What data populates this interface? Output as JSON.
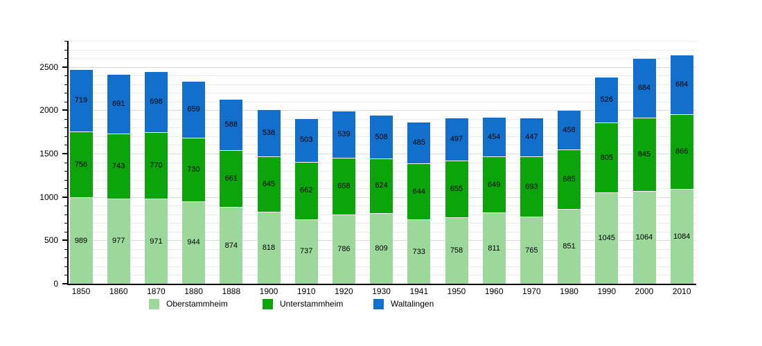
{
  "chart_data": {
    "type": "bar",
    "stacked": true,
    "title": "",
    "xlabel": "",
    "ylabel": "",
    "categories": [
      "1850",
      "1860",
      "1870",
      "1880",
      "1888",
      "1900",
      "1910",
      "1920",
      "1930",
      "1941",
      "1950",
      "1960",
      "1970",
      "1980",
      "1990",
      "2000",
      "2010"
    ],
    "series": [
      {
        "name": "Oberstammheim",
        "color": "#9cd89c",
        "values": [
          989,
          977,
          971,
          944,
          874,
          818,
          737,
          786,
          809,
          733,
          758,
          811,
          765,
          851,
          1045,
          1064,
          1084
        ]
      },
      {
        "name": "Unterstammheim",
        "color": "#0ba50b",
        "values": [
          756,
          743,
          770,
          730,
          661,
          645,
          662,
          658,
          624,
          644,
          655,
          649,
          693,
          685,
          805,
          845,
          866
        ]
      },
      {
        "name": "Waltalingen",
        "color": "#1270cc",
        "values": [
          719,
          691,
          698,
          659,
          588,
          538,
          503,
          539,
          508,
          485,
          497,
          454,
          447,
          458,
          526,
          684,
          684
        ]
      }
    ],
    "ylim": [
      0,
      2800
    ],
    "yticks": [
      0,
      500,
      1000,
      1500,
      2000,
      2500
    ],
    "minor_grid_step": 100,
    "grid": true,
    "show_value_labels": true,
    "legend_position": "bottom"
  }
}
